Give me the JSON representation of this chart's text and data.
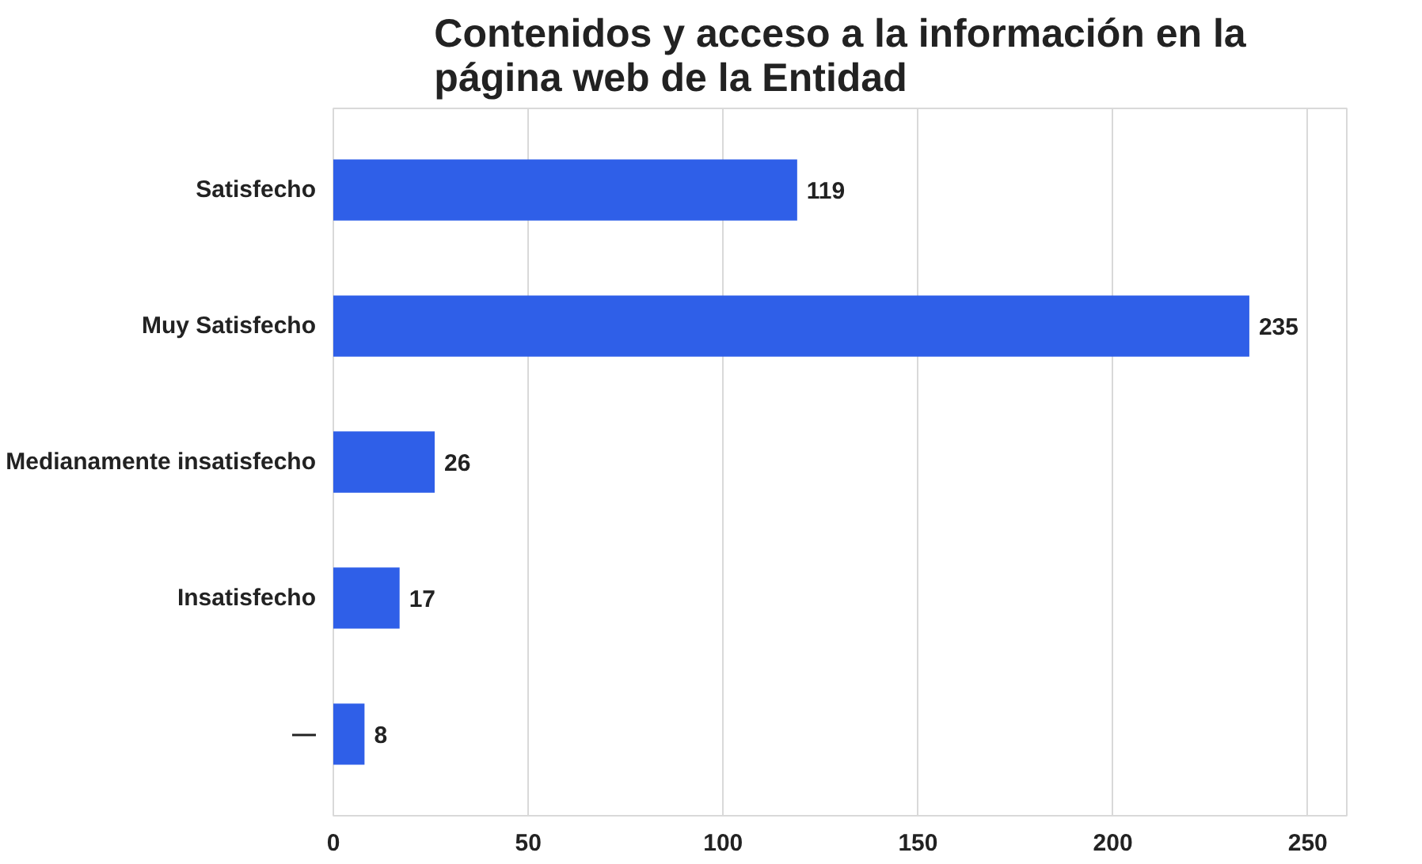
{
  "chart_data": {
    "type": "bar",
    "orientation": "horizontal",
    "title": "Contenidos y acceso a la información en la página web de la Entidad",
    "categories": [
      "Satisfecho",
      "Muy Satisfecho",
      "Medianamente insatisfecho",
      "Insatisfecho",
      "—"
    ],
    "values": [
      119,
      235,
      26,
      17,
      8
    ],
    "color": "#2f5fe8",
    "data_labels": true,
    "xlim": [
      0,
      260
    ],
    "xticks": [
      0,
      50,
      100,
      150,
      200,
      250
    ],
    "grid": "x"
  }
}
